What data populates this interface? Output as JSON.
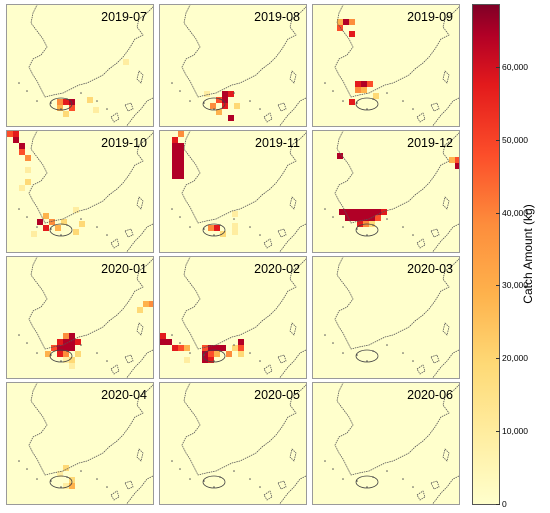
{
  "panels": [
    {
      "label": "2019-07"
    },
    {
      "label": "2019-08"
    },
    {
      "label": "2019-09"
    },
    {
      "label": "2019-10"
    },
    {
      "label": "2019-11"
    },
    {
      "label": "2019-12"
    },
    {
      "label": "2020-01"
    },
    {
      "label": "2020-02"
    },
    {
      "label": "2020-03"
    },
    {
      "label": "2020-04"
    },
    {
      "label": "2020-05"
    },
    {
      "label": "2020-06"
    }
  ],
  "legend": {
    "title": "Catch Amount (kg)",
    "ticks": [
      "0",
      "10,000",
      "20,000",
      "30,000",
      "40,000",
      "50,000",
      "60,000"
    ]
  },
  "colors": {
    "background": "#ffffcc",
    "low": "#ffeda0",
    "mid": "#feb24c",
    "high": "#e31a1c",
    "max": "#800026"
  }
}
